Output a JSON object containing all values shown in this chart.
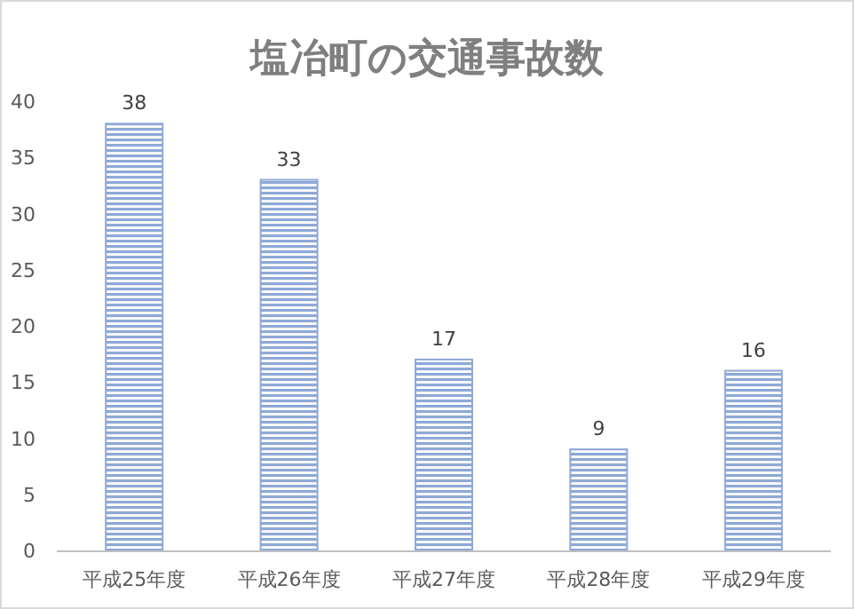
{
  "chart_data": {
    "type": "bar",
    "title": "塩冶町の交通事故数",
    "categories": [
      "平成25年度",
      "平成26年度",
      "平成27年度",
      "平成28年度",
      "平成29年度"
    ],
    "values": [
      38,
      33,
      17,
      9,
      16
    ],
    "color": "#8ea9d8",
    "ylim": [
      0,
      40
    ],
    "yticks": [
      0,
      5,
      10,
      15,
      20,
      25,
      30,
      35,
      40
    ],
    "data_labels": true
  }
}
